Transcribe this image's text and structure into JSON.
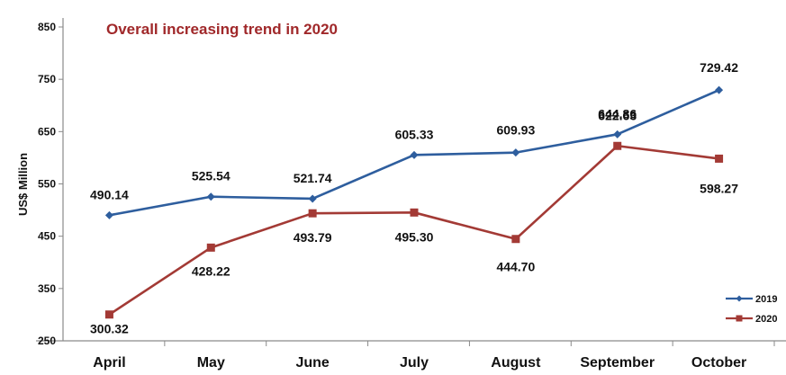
{
  "chart_data": {
    "type": "line",
    "title": "Overall increasing trend in 2020",
    "title_color": "#A0282A",
    "ylabel": "US$ Million",
    "xlabel": "",
    "ylim": [
      250,
      850
    ],
    "yticks": [
      250,
      350,
      450,
      550,
      650,
      750,
      850
    ],
    "categories": [
      "April",
      "May",
      "June",
      "July",
      "August",
      "September",
      "October"
    ],
    "series": [
      {
        "name": "2019",
        "color": "#2E5E9E",
        "marker": "diamond",
        "values": [
          490.14,
          525.54,
          521.74,
          605.33,
          609.93,
          644.86,
          729.42
        ],
        "labels": [
          "490.14",
          "525.54",
          "521.74",
          "605.33",
          "609.93",
          "644.86",
          "729.42"
        ]
      },
      {
        "name": "2020",
        "color": "#A33A35",
        "marker": "square",
        "values": [
          300.32,
          428.22,
          493.79,
          495.3,
          444.7,
          622.63,
          598.27
        ],
        "labels": [
          "300.32",
          "428.22",
          "493.79",
          "495.30",
          "444.70",
          "622.63",
          "598.27"
        ]
      }
    ],
    "legend_position": "bottom-right",
    "grid": false
  }
}
